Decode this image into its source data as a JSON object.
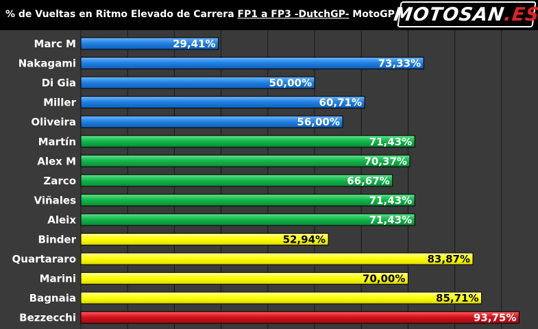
{
  "header": {
    "title_prefix": "% de Vueltas en Ritmo Elevado de Carrera ",
    "title_underlined": "FP1 a FP3 -DutchGP-",
    "title_suffix": " MotoGP",
    "logo_main": "MOTOSAN",
    "logo_accent": ".ES"
  },
  "colors": {
    "blue": "#1f7fe0",
    "green": "#12b54a",
    "yellow": "#ffff00",
    "red": "#d0101a",
    "background": "#3a3a3a"
  },
  "chart_data": {
    "type": "bar",
    "orientation": "horizontal",
    "xlim": [
      0,
      100
    ],
    "grid": true,
    "categories": [
      "Marc M",
      "Nakagami",
      "Di Gia",
      "Miller",
      "Oliveira",
      "Martín",
      "Alex M",
      "Zarco",
      "Viñales",
      "Aleix",
      "Binder",
      "Quartararo",
      "Marini",
      "Bagnaia",
      "Bezzecchi"
    ],
    "values": [
      29.41,
      73.33,
      50.0,
      60.71,
      56.0,
      71.43,
      70.37,
      66.67,
      71.43,
      71.43,
      52.94,
      83.87,
      70.0,
      85.71,
      93.75
    ],
    "value_labels": [
      "29,41%",
      "73,33%",
      "50,00%",
      "60,71%",
      "56,00%",
      "71,43%",
      "70,37%",
      "66,67%",
      "71,43%",
      "71,43%",
      "52,94%",
      "83,87%",
      "70,00%",
      "85,71%",
      "93,75%"
    ],
    "bar_colors": [
      "blue",
      "blue",
      "blue",
      "blue",
      "blue",
      "green",
      "green",
      "green",
      "green",
      "green",
      "yellow",
      "yellow",
      "yellow",
      "yellow",
      "red"
    ]
  }
}
